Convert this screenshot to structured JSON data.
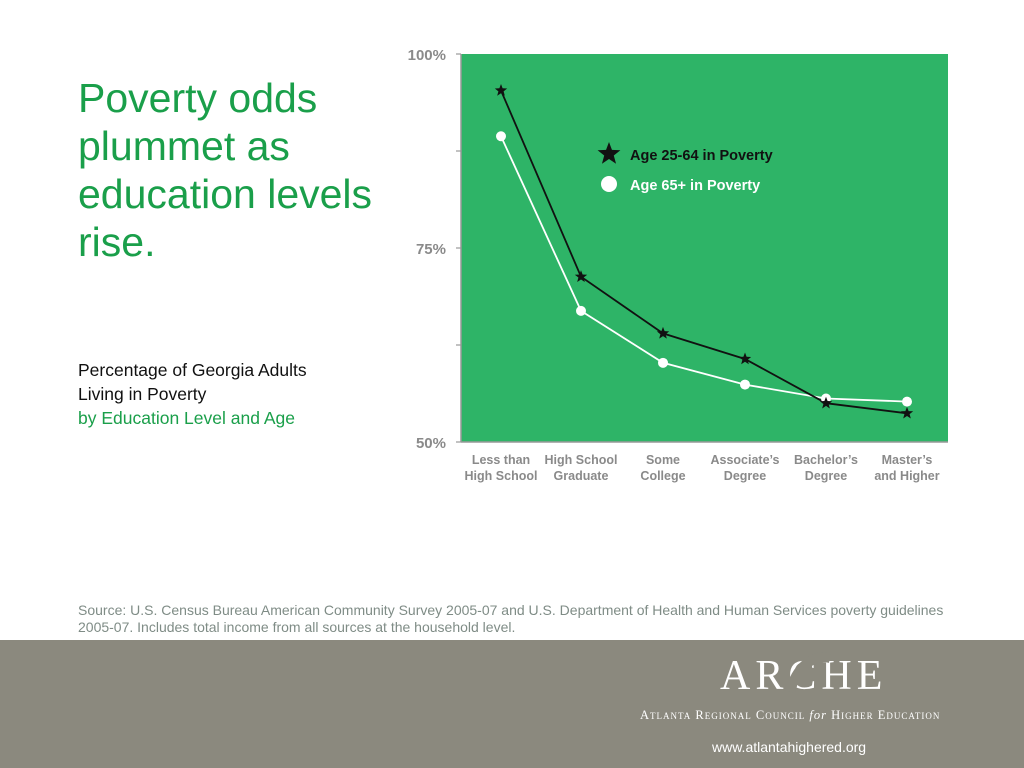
{
  "headline": "Poverty odds plummet as education levels rise.",
  "subtitle": {
    "line1": "Percentage of Georgia Adults",
    "line2": "Living in Poverty",
    "line3": "by Education Level and Age"
  },
  "source": "Source: U.S. Census Bureau American Community Survey 2005-07 and U.S. Department of Health and Human Services poverty guidelines 2005-07. Includes total income from all sources at the household level.",
  "footer": {
    "logo": "ARCHE",
    "council_pre": "Atlanta Regional Council ",
    "council_for": "for",
    "council_post": " Higher Education",
    "url": "www.atlantahighered.org"
  },
  "colors": {
    "plot_bg": "#2eb467",
    "headline": "#1a9f4a",
    "footer_bg": "#8b897e"
  },
  "chart_data": {
    "type": "line",
    "categories": [
      [
        "Less than",
        "High School"
      ],
      [
        "High School",
        "Graduate"
      ],
      [
        "Some",
        "College"
      ],
      [
        "Associate’s",
        "Degree"
      ],
      [
        "Bachelor’s",
        "Degree"
      ],
      [
        "Master’s",
        "and Higher"
      ]
    ],
    "series": [
      {
        "name": "Age 25-64 in Poverty",
        "marker": "star",
        "color": "#111111",
        "values": [
          95.3,
          71.3,
          64.0,
          60.7,
          55.0,
          53.7
        ]
      },
      {
        "name": "Age 65+ in Poverty",
        "marker": "circle",
        "color": "#ffffff",
        "values": [
          89.4,
          66.9,
          60.2,
          57.4,
          55.6,
          55.2
        ]
      }
    ],
    "yticks": [
      "100%",
      "75%",
      "50%"
    ],
    "ylim": [
      50,
      100
    ],
    "grid": false,
    "legend": "top-right"
  }
}
